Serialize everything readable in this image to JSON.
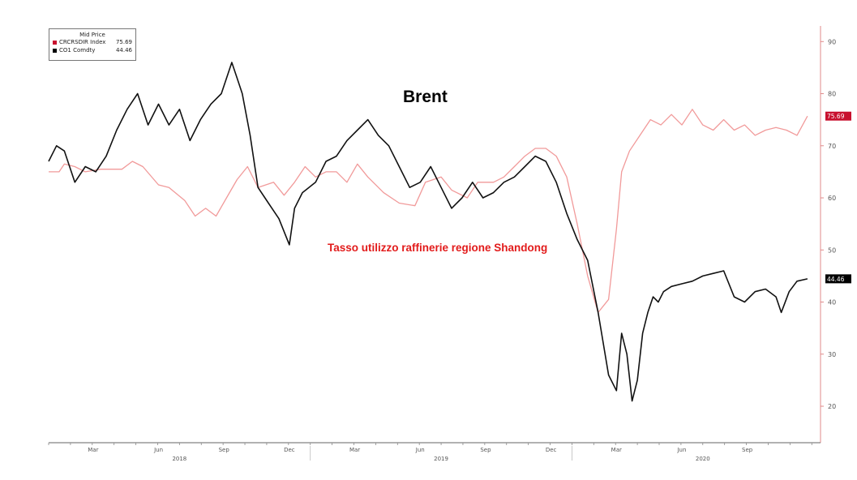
{
  "legend": {
    "title": "Mid Price",
    "items": [
      {
        "label": "CRCRSDIR Index",
        "value": "75.69",
        "color": "#c8102e"
      },
      {
        "label": "CO1 Comdty",
        "value": "44.46",
        "color": "#000000"
      }
    ]
  },
  "annotations": {
    "brent": "Brent",
    "refinery": "Tasso utilizzo raffinerie regione Shandong"
  },
  "chart_data": {
    "type": "line",
    "x_ticks": [
      "Mar",
      "Jun",
      "Sep",
      "Dec",
      "Mar",
      "Jun",
      "Sep",
      "Dec",
      "Mar",
      "Jun",
      "Sep"
    ],
    "years": [
      "2018",
      "2019",
      "2020"
    ],
    "y_ticks": [
      20,
      30,
      40,
      50,
      60,
      70,
      80,
      90
    ],
    "ylim": [
      13,
      93
    ],
    "xlim": [
      2018.0,
      2020.95
    ],
    "end_labels": {
      "red": "75.69",
      "black": "44.46"
    },
    "series": [
      {
        "name": "CRCRSDIR Index",
        "color": "#f19a9a",
        "x": [
          2018.0,
          2018.04,
          2018.06,
          2018.1,
          2018.14,
          2018.2,
          2018.28,
          2018.32,
          2018.36,
          2018.42,
          2018.46,
          2018.52,
          2018.56,
          2018.6,
          2018.64,
          2018.68,
          2018.72,
          2018.76,
          2018.8,
          2018.86,
          2018.9,
          2018.94,
          2018.98,
          2019.02,
          2019.06,
          2019.1,
          2019.14,
          2019.18,
          2019.22,
          2019.28,
          2019.34,
          2019.4,
          2019.44,
          2019.5,
          2019.54,
          2019.6,
          2019.64,
          2019.7,
          2019.74,
          2019.78,
          2019.82,
          2019.86,
          2019.9,
          2019.94,
          2019.98,
          2020.02,
          2020.06,
          2020.1,
          2020.14,
          2020.17,
          2020.19,
          2020.22,
          2020.26,
          2020.3,
          2020.34,
          2020.38,
          2020.42,
          2020.46,
          2020.5,
          2020.54,
          2020.58,
          2020.62,
          2020.66,
          2020.7,
          2020.74,
          2020.78,
          2020.82,
          2020.86,
          2020.9
        ],
        "y": [
          65,
          65,
          66.5,
          66,
          65,
          65.5,
          65.5,
          67,
          66,
          62.5,
          62,
          59.5,
          56.5,
          58,
          56.5,
          60,
          63.5,
          66,
          62,
          63,
          60.5,
          63,
          66,
          64,
          65,
          65,
          63,
          66.5,
          64,
          61,
          59,
          58.5,
          63,
          64,
          61.5,
          60,
          63,
          63,
          64,
          66,
          68,
          69.5,
          69.5,
          68,
          64,
          55,
          45,
          38,
          40.5,
          54,
          65,
          69,
          72,
          75,
          74,
          76,
          74,
          77,
          74,
          73,
          75,
          73,
          74,
          72,
          73,
          73.5,
          73,
          72,
          75.69
        ]
      },
      {
        "name": "CO1 Comdty",
        "color": "#111111",
        "x": [
          2018.0,
          2018.03,
          2018.06,
          2018.1,
          2018.14,
          2018.18,
          2018.22,
          2018.26,
          2018.3,
          2018.34,
          2018.38,
          2018.42,
          2018.46,
          2018.5,
          2018.54,
          2018.58,
          2018.62,
          2018.66,
          2018.7,
          2018.72,
          2018.74,
          2018.77,
          2018.8,
          2018.84,
          2018.88,
          2018.92,
          2018.94,
          2018.97,
          2019.02,
          2019.06,
          2019.1,
          2019.14,
          2019.18,
          2019.22,
          2019.26,
          2019.3,
          2019.34,
          2019.38,
          2019.42,
          2019.46,
          2019.5,
          2019.54,
          2019.58,
          2019.62,
          2019.66,
          2019.7,
          2019.74,
          2019.78,
          2019.82,
          2019.86,
          2019.9,
          2019.94,
          2019.98,
          2020.02,
          2020.06,
          2020.1,
          2020.14,
          2020.17,
          2020.19,
          2020.21,
          2020.23,
          2020.25,
          2020.27,
          2020.29,
          2020.31,
          2020.33,
          2020.35,
          2020.38,
          2020.42,
          2020.46,
          2020.5,
          2020.54,
          2020.58,
          2020.62,
          2020.66,
          2020.7,
          2020.74,
          2020.78,
          2020.8,
          2020.83,
          2020.86,
          2020.9
        ],
        "y": [
          67,
          70,
          69,
          63,
          66,
          65,
          68,
          73,
          77,
          80,
          74,
          78,
          74,
          77,
          71,
          75,
          78,
          80,
          86,
          83,
          80,
          72,
          62,
          59,
          56,
          51,
          58,
          61,
          63,
          67,
          68,
          71,
          73,
          75,
          72,
          70,
          66,
          62,
          63,
          66,
          62,
          58,
          60,
          63,
          60,
          61,
          63,
          64,
          66,
          68,
          67,
          63,
          57,
          52,
          48,
          38,
          26,
          23,
          34,
          30,
          21,
          25,
          34,
          38,
          41,
          40,
          42,
          43,
          43.5,
          44,
          45,
          45.5,
          46,
          41,
          40,
          42,
          42.5,
          41,
          38,
          42,
          44,
          44.46
        ]
      }
    ]
  }
}
